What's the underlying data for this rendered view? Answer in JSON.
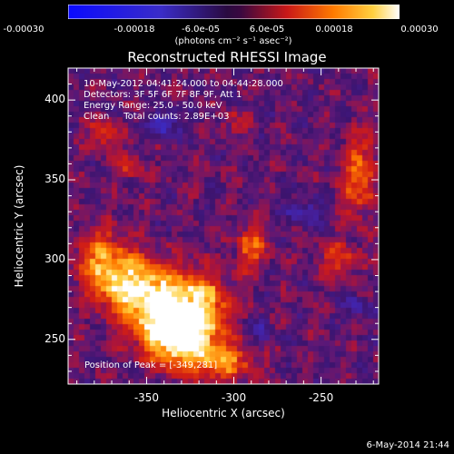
{
  "chart_data": {
    "type": "heatmap",
    "title": "Reconstructed RHESSI Image",
    "xlabel": "Heliocentric X (arcsec)",
    "ylabel": "Heliocentric Y (arcsec)",
    "xlim": [
      -395,
      -217
    ],
    "ylim": [
      222,
      420
    ],
    "x_ticks": [
      -350,
      -300,
      -250
    ],
    "y_ticks": [
      250,
      300,
      350,
      400
    ],
    "colorbar": {
      "range": [
        -0.0003,
        0.0003
      ],
      "tick_labels": [
        "-0.00030",
        "-0.00018",
        "-6.0e-05",
        "6.0e-05",
        "0.00018",
        "0.00030"
      ],
      "unit_label": "(photons cm⁻² s⁻¹ asec⁻²)"
    },
    "annotations": {
      "time_range": "10-May-2012 04:41:24.000 to 04:44:28.000",
      "detectors": "Detectors: 3F 5F 6F 7F 8F 9F, Att 1",
      "energy_range": "Energy Range: 25.0 - 50.0 keV",
      "method_counts": "Clean     Total counts: 2.89E+03",
      "peak": "Position of Peak = [-349,281]"
    },
    "peak_position": [
      -349,
      281
    ],
    "hot_regions": [
      {
        "x": -355,
        "y": 282,
        "sx": 14,
        "sy": 12,
        "amp": 0.0003
      },
      {
        "x": -340,
        "y": 260,
        "sx": 12,
        "sy": 10,
        "amp": 0.00026
      },
      {
        "x": -322,
        "y": 270,
        "sx": 12,
        "sy": 14,
        "amp": 0.00028
      },
      {
        "x": -330,
        "y": 245,
        "sx": 14,
        "sy": 10,
        "amp": 0.00022
      },
      {
        "x": -375,
        "y": 300,
        "sx": 10,
        "sy": 12,
        "amp": 0.00018
      },
      {
        "x": -305,
        "y": 235,
        "sx": 12,
        "sy": 8,
        "amp": 0.00015
      },
      {
        "x": -290,
        "y": 308,
        "sx": 6,
        "sy": 10,
        "amp": 0.00014
      },
      {
        "x": -228,
        "y": 352,
        "sx": 7,
        "sy": 18,
        "amp": 0.00014
      },
      {
        "x": -240,
        "y": 300,
        "sx": 8,
        "sy": 8,
        "amp": 0.0001
      },
      {
        "x": -375,
        "y": 378,
        "sx": 6,
        "sy": 6,
        "amp": 0.00012
      },
      {
        "x": -360,
        "y": 358,
        "sx": 5,
        "sy": 5,
        "amp": 0.0001
      },
      {
        "x": -300,
        "y": 385,
        "sx": 5,
        "sy": 5,
        "amp": 8e-05
      }
    ],
    "cold_regions": [
      {
        "x": -340,
        "y": 385,
        "sx": 6,
        "sy": 6,
        "amp": -0.00012
      },
      {
        "x": -260,
        "y": 330,
        "sx": 6,
        "sy": 6,
        "amp": -0.0001
      },
      {
        "x": -230,
        "y": 270,
        "sx": 5,
        "sy": 5,
        "amp": -0.0001
      },
      {
        "x": -285,
        "y": 255,
        "sx": 5,
        "sy": 5,
        "amp": -8e-05
      }
    ]
  },
  "footer": {
    "date": "6-May-2014 21:44"
  }
}
